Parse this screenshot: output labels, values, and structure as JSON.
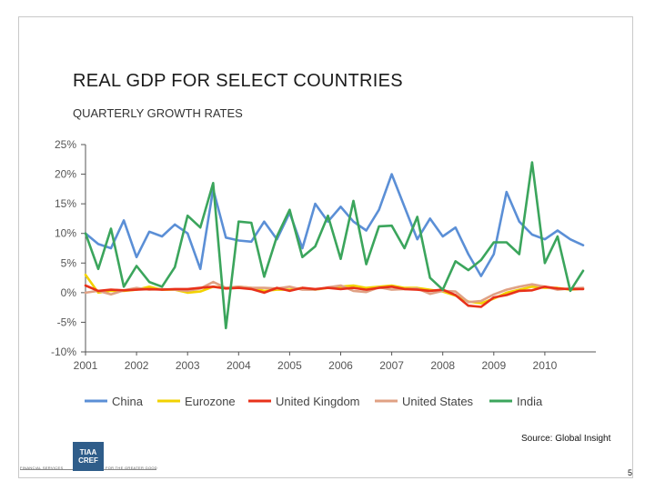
{
  "slide": {
    "title": "REAL GDP FOR SELECT COUNTRIES",
    "subtitle": "QUARTERLY GROWTH RATES",
    "source": "Source: Global Insight",
    "page_number": "5",
    "logo_text": [
      "TIAA",
      "CREF"
    ],
    "footer_left": "FINANCIAL SERVICES",
    "footer_right": "FOR THE GREATER GOOD"
  },
  "chart_data": {
    "type": "line",
    "title": "",
    "xlabel": "",
    "ylabel": "",
    "ylim": [
      -10,
      25
    ],
    "yticks": [
      25,
      20,
      15,
      10,
      5,
      0,
      -5,
      -10
    ],
    "ytick_labels": [
      "25%",
      "20%",
      "15%",
      "10%",
      "5%",
      "0%",
      "-5%",
      "-10%"
    ],
    "xlim": [
      2001.0,
      2011.0
    ],
    "xticks": [
      2001,
      2002,
      2003,
      2004,
      2005,
      2006,
      2007,
      2008,
      2009,
      2010
    ],
    "xtick_labels": [
      "2001",
      "2002",
      "2003",
      "2004",
      "2005",
      "2006",
      "2007",
      "2008",
      "2009",
      "2010"
    ],
    "grid": false,
    "legend_position": "bottom",
    "quarters_x_start": 2001.0,
    "quarter_step": 0.25,
    "series": [
      {
        "name": "China",
        "color": "#5b8fd6",
        "values": [
          10.0,
          8.2,
          7.5,
          12.2,
          6.0,
          10.3,
          9.5,
          11.5,
          10.0,
          4.0,
          17.5,
          9.3,
          8.8,
          8.6,
          12.0,
          9.0,
          13.5,
          7.5,
          15.0,
          12.0,
          14.5,
          12.0,
          10.5,
          14.0,
          20.0,
          14.5,
          9.0,
          12.5,
          9.5,
          11.0,
          6.5,
          2.8,
          6.5,
          17.0,
          12.0,
          9.8,
          9.0,
          10.5,
          9.0,
          8.0
        ]
      },
      {
        "name": "Eurozone",
        "color": "#f2d200",
        "values": [
          3.0,
          0.0,
          0.3,
          0.3,
          0.5,
          1.0,
          0.5,
          0.5,
          0.0,
          0.2,
          1.0,
          0.8,
          1.0,
          0.8,
          0.3,
          0.5,
          0.5,
          0.8,
          0.5,
          0.8,
          1.0,
          1.2,
          0.8,
          1.0,
          1.2,
          0.8,
          0.8,
          0.5,
          0.2,
          -0.5,
          -1.5,
          -1.8,
          -1.0,
          0.0,
          0.5,
          1.0,
          0.8,
          0.8,
          0.5,
          0.7
        ]
      },
      {
        "name": "United Kingdom",
        "color": "#e8311a",
        "values": [
          1.2,
          0.3,
          0.5,
          0.4,
          0.5,
          0.6,
          0.5,
          0.6,
          0.6,
          0.8,
          1.0,
          0.7,
          0.8,
          0.6,
          0.0,
          0.8,
          0.3,
          0.8,
          0.6,
          0.8,
          0.6,
          0.8,
          0.5,
          0.8,
          1.0,
          0.6,
          0.5,
          0.3,
          0.5,
          -0.4,
          -2.2,
          -2.4,
          -0.8,
          -0.4,
          0.3,
          0.4,
          1.0,
          0.7,
          0.6,
          0.6
        ]
      },
      {
        "name": "United States",
        "color": "#e0a184",
        "values": [
          0.0,
          0.3,
          -0.3,
          0.4,
          0.8,
          0.5,
          0.6,
          0.5,
          0.3,
          0.7,
          1.8,
          0.8,
          1.0,
          0.8,
          0.8,
          0.7,
          1.0,
          0.5,
          0.5,
          0.9,
          1.2,
          0.3,
          0.1,
          0.9,
          0.5,
          0.6,
          0.7,
          -0.2,
          0.3,
          0.2,
          -1.6,
          -1.4,
          -0.3,
          0.5,
          1.0,
          1.4,
          1.0,
          0.5,
          0.7,
          0.8
        ]
      },
      {
        "name": "India",
        "color": "#3ba55c",
        "values": [
          10.0,
          4.0,
          10.8,
          1.0,
          4.5,
          1.8,
          1.0,
          4.3,
          13.0,
          11.0,
          18.5,
          -6.0,
          12.0,
          11.8,
          2.7,
          9.5,
          14.0,
          6.0,
          7.8,
          13.0,
          5.7,
          15.5,
          4.8,
          11.2,
          11.3,
          7.5,
          12.8,
          2.5,
          0.5,
          5.3,
          3.8,
          5.5,
          8.5,
          8.5,
          6.5,
          22.0,
          5.0,
          9.5,
          0.3,
          3.7
        ]
      }
    ]
  }
}
